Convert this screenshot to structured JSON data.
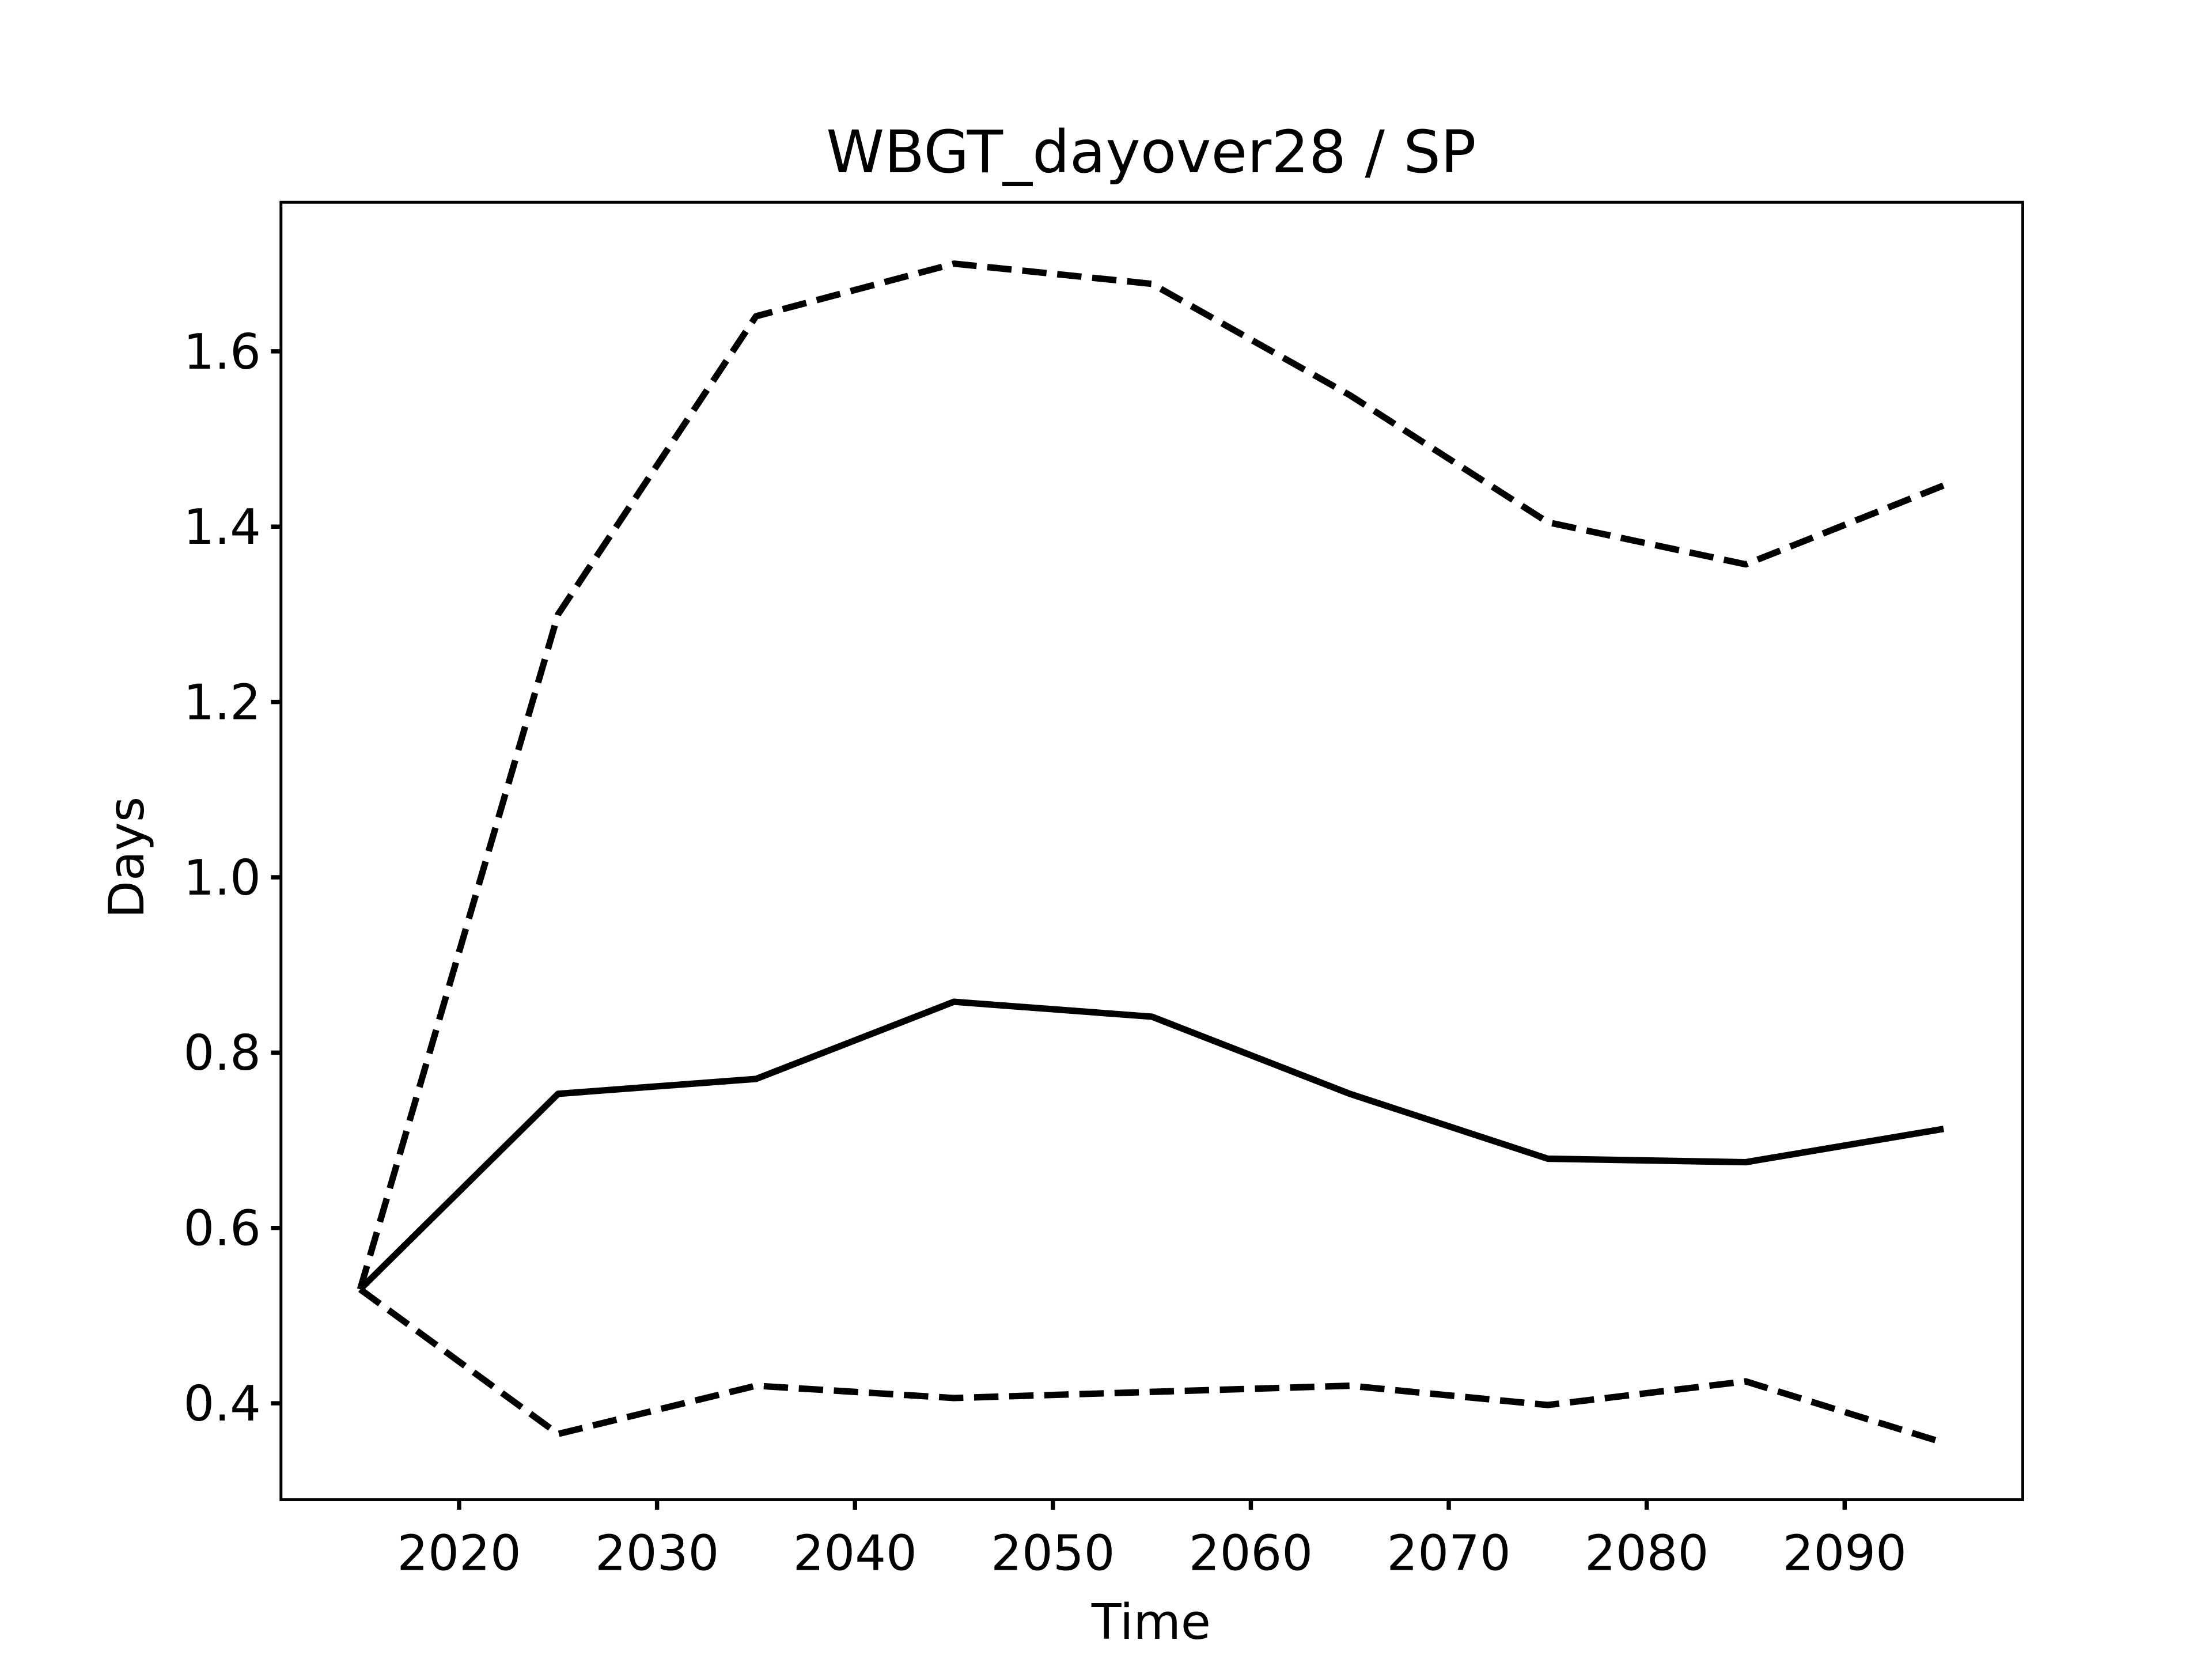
{
  "chart_data": {
    "type": "line",
    "title": "WBGT_dayover28 / SP",
    "xlabel": "Time",
    "ylabel": "Days",
    "x": [
      2015,
      2025,
      2035,
      2045,
      2055,
      2065,
      2075,
      2085,
      2095
    ],
    "xlim": [
      2011,
      2099
    ],
    "ylim": [
      0.29,
      1.77
    ],
    "x_ticks": [
      2020,
      2030,
      2040,
      2050,
      2060,
      2070,
      2080,
      2090
    ],
    "x_tick_labels": [
      "2020",
      "2030",
      "2040",
      "2050",
      "2060",
      "2070",
      "2080",
      "2090"
    ],
    "y_ticks": [
      0.4,
      0.6,
      0.8,
      1.0,
      1.2,
      1.4,
      1.6
    ],
    "y_tick_labels": [
      "0.4",
      "0.6",
      "0.8",
      "1.0",
      "1.2",
      "1.4",
      "1.6"
    ],
    "grid": false,
    "legend": "none",
    "series": [
      {
        "style": "solid",
        "color": "#000000",
        "values": [
          0.53,
          0.753,
          0.77,
          0.858,
          0.841,
          0.753,
          0.679,
          0.675,
          0.713
        ]
      },
      {
        "style": "dashed",
        "color": "#000000",
        "values": [
          0.53,
          1.3,
          1.64,
          1.7,
          1.677,
          1.55,
          1.405,
          1.357,
          1.447
        ]
      },
      {
        "style": "dashed",
        "color": "#000000",
        "values": [
          0.53,
          0.365,
          0.42,
          0.406,
          0.413,
          0.42,
          0.398,
          0.425,
          0.355
        ]
      }
    ]
  }
}
